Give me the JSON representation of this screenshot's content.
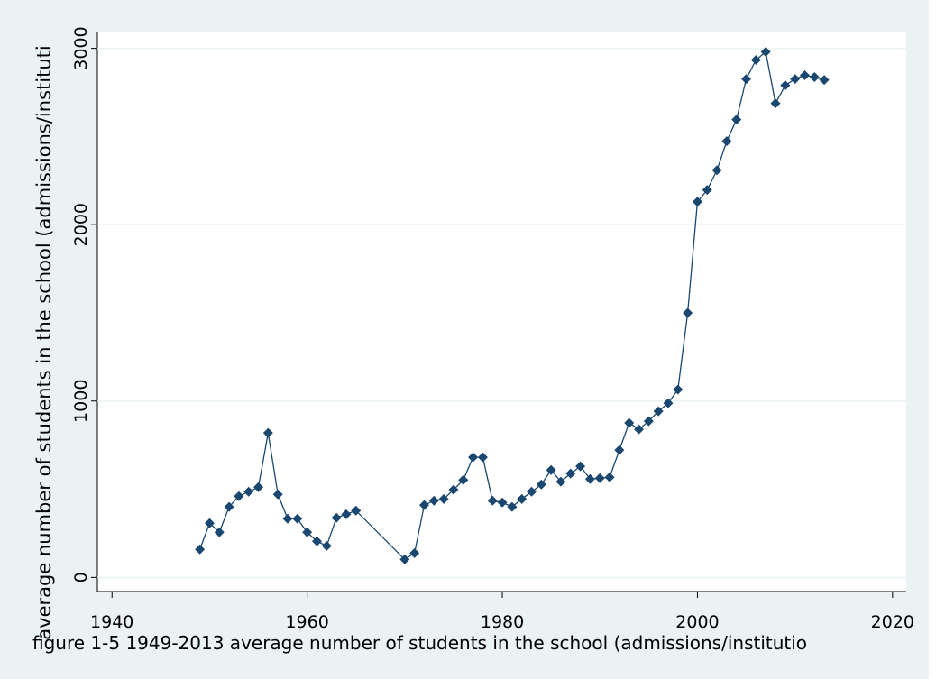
{
  "chart_data": {
    "type": "line",
    "y_label": "average number of students in the school (admissions/instituti",
    "caption": "figure 1-5 1949-2013 average number of students in the school (admissions/institutio",
    "x": [
      1949,
      1950,
      1951,
      1952,
      1953,
      1954,
      1955,
      1956,
      1957,
      1958,
      1959,
      1960,
      1961,
      1962,
      1963,
      1964,
      1965,
      1970,
      1971,
      1972,
      1973,
      1974,
      1975,
      1976,
      1977,
      1978,
      1979,
      1980,
      1981,
      1982,
      1983,
      1984,
      1985,
      1986,
      1987,
      1988,
      1989,
      1990,
      1991,
      1992,
      1993,
      1994,
      1995,
      1996,
      1997,
      1998,
      1999,
      2000,
      2001,
      2002,
      2003,
      2004,
      2005,
      2006,
      2007,
      2008,
      2009,
      2010,
      2011,
      2012,
      2013
    ],
    "series": [
      {
        "color": "#1a476f",
        "values": [
          159,
          307,
          256,
          400,
          461,
          486,
          512,
          819,
          471,
          333,
          333,
          256,
          205,
          179,
          338,
          358,
          379,
          102,
          138,
          410,
          435,
          445,
          497,
          553,
          681,
          681,
          435,
          425,
          400,
          445,
          486,
          527,
          609,
          543,
          589,
          630,
          558,
          563,
          568,
          722,
          876,
          840,
          886,
          942,
          988,
          1065,
          1500,
          2130,
          2197,
          2309,
          2473,
          2596,
          2826,
          2934,
          2980,
          2688,
          2790,
          2826,
          2847,
          2837,
          2821
        ]
      }
    ],
    "xlim": [
      1938.5,
      2021.4
    ],
    "ylim": [
      -80,
      3090
    ],
    "xticks": [
      1940,
      1960,
      1980,
      2000,
      2020
    ],
    "yticks": [
      0,
      1000,
      2000,
      3000
    ],
    "grid": true
  }
}
